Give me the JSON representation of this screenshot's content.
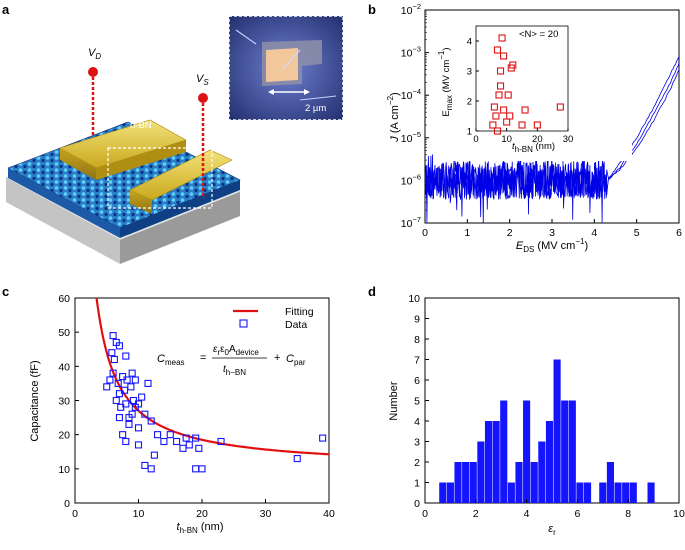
{
  "panels": {
    "a": {
      "letter": "a",
      "vd_label": "V",
      "vd_sub": "D",
      "vs_label": "V",
      "vs_sub": "S",
      "hbn_label": "h-BN",
      "scale_bar": "2 µm"
    },
    "b": {
      "letter": "b"
    },
    "c": {
      "letter": "c"
    },
    "d": {
      "letter": "d"
    }
  },
  "colors": {
    "curve_blue": "#0000e6",
    "marker_red": "#dd1111",
    "fit_red": "#e01010",
    "hist_blue": "#1414ff"
  },
  "chart_data": [
    {
      "id": "b-main",
      "type": "line",
      "xlabel_main": "E",
      "xlabel_sub": "DS",
      "xlabel_unit": " (MV cm",
      "xlabel_exp": "−1",
      "xlabel_close": ")",
      "ylabel_main": "J",
      "ylabel_unit": " (A cm",
      "ylabel_exp": "−2",
      "ylabel_close": ")",
      "xlim": [
        0,
        6
      ],
      "xticks": [
        "0",
        "1",
        "2",
        "3",
        "4",
        "5",
        "6"
      ],
      "yscale": "log",
      "ylim_exp": [
        -7,
        -2
      ],
      "yticks_base": "10",
      "yticks_exp": [
        "−7",
        "−6",
        "−5",
        "−4",
        "−3",
        "−2"
      ],
      "description_series": "Three J–E sweeps: noise floor near 1e-6 A/cm² up to ~4.2 MV/cm, then exponential rise to ~1e-3 at 6 MV/cm",
      "series": [
        {
          "name": "sweep 1",
          "x": [
            4.3,
            4.6,
            5.0,
            5.4,
            5.8,
            6.0
          ],
          "y_log": [
            -6.0,
            -5.6,
            -5.0,
            -4.3,
            -3.5,
            -3.1
          ]
        },
        {
          "name": "sweep 2",
          "x": [
            4.3,
            4.6,
            5.0,
            5.4,
            5.8,
            6.0
          ],
          "y_log": [
            -6.0,
            -5.7,
            -5.15,
            -4.45,
            -3.7,
            -3.25
          ]
        },
        {
          "name": "sweep 3",
          "x": [
            4.3,
            4.6,
            5.0,
            5.4,
            5.8,
            6.0
          ],
          "y_log": [
            -6.0,
            -5.75,
            -5.25,
            -4.6,
            -3.85,
            -3.4
          ]
        }
      ]
    },
    {
      "id": "b-inset",
      "type": "scatter",
      "annotation": "<N> = 20",
      "ylabel_main": "E",
      "ylabel_sub": "max",
      "ylabel_unit": " (MV cm",
      "ylabel_exp": "−1",
      "ylabel_close": ")",
      "xlabel_main": "t",
      "xlabel_sub": "h-BN",
      "xlabel_unit": " (nm)",
      "xlim": [
        0,
        30
      ],
      "ylim": [
        1,
        4.5
      ],
      "xticks": [
        "0",
        "10",
        "20",
        "30"
      ],
      "yticks": [
        "1",
        "2",
        "3",
        "4"
      ],
      "x": [
        5.5,
        6.0,
        6.5,
        7.0,
        7.0,
        7.5,
        8.0,
        8.0,
        8.5,
        9.0,
        9.0,
        10.0,
        10.5,
        11.0,
        11.5,
        12.0,
        15.0,
        16.0,
        20.0,
        27.5
      ],
      "y": [
        1.2,
        1.8,
        1.5,
        3.7,
        1.0,
        2.2,
        2.5,
        3.0,
        4.1,
        3.5,
        1.7,
        1.3,
        2.2,
        1.5,
        3.1,
        3.2,
        1.2,
        1.7,
        1.2,
        1.8
      ]
    },
    {
      "id": "c",
      "type": "scatter",
      "ylabel": "Capacitance (fF)",
      "xlabel_main": "t",
      "xlabel_sub": "h-BN",
      "xlabel_unit": " (nm)",
      "xlim": [
        0,
        40
      ],
      "ylim": [
        0,
        60
      ],
      "xticks": [
        "0",
        "10",
        "20",
        "30",
        "40"
      ],
      "yticks": [
        "0",
        "10",
        "20",
        "30",
        "40",
        "50",
        "60"
      ],
      "legend": [
        {
          "label": "Fitting"
        },
        {
          "label": "Data"
        }
      ],
      "formula": {
        "lhs": "C",
        "lhs_sub": "meas",
        "eq": "=",
        "num_a": "ε",
        "num_a_sub": "r",
        "num_b": "ε",
        "num_b_sub": "0",
        "num_c": "A",
        "num_c_sub": "device",
        "den": "t",
        "den_sub": "h−BN",
        "plus": "+",
        "tail": "C",
        "tail_sub": "par"
      },
      "fit": {
        "numerator": 170,
        "offset": 10
      },
      "x": [
        5,
        5.5,
        5.8,
        6,
        6,
        6.2,
        6.5,
        6.5,
        6.8,
        7,
        7,
        7,
        7.2,
        7.5,
        7.5,
        7.8,
        8,
        8,
        8,
        8.2,
        8.5,
        8.5,
        8.8,
        9,
        9,
        9.2,
        9.5,
        9.5,
        10,
        10,
        10,
        10.5,
        11,
        11,
        11.5,
        12,
        12,
        12.5,
        13,
        14,
        15,
        16,
        17,
        17.5,
        18,
        19,
        19,
        19.5,
        20,
        23,
        35,
        39
      ],
      "y": [
        34,
        36,
        44,
        49,
        38,
        42,
        47,
        30,
        35,
        46,
        32,
        25,
        28,
        37,
        20,
        33,
        43,
        29,
        18,
        36,
        25,
        23,
        34,
        38,
        26,
        30,
        36,
        28,
        22,
        17,
        29,
        31,
        26,
        11,
        35,
        24,
        10,
        14,
        20,
        18,
        20,
        18,
        16,
        19,
        17,
        19,
        10,
        16,
        10,
        18,
        13,
        19
      ]
    },
    {
      "id": "d",
      "type": "bar",
      "ylabel": "Number",
      "xlabel_main": "ε",
      "xlabel_sub": "r",
      "xlim": [
        0,
        10
      ],
      "ylim": [
        0,
        10
      ],
      "xticks": [
        "0",
        "2",
        "4",
        "6",
        "8",
        "10"
      ],
      "yticks": [
        "0",
        "1",
        "2",
        "3",
        "4",
        "5",
        "6",
        "7",
        "8",
        "9",
        "10"
      ],
      "bin_width": 0.28,
      "bins": [
        {
          "x": 0.7,
          "v": 1
        },
        {
          "x": 1.0,
          "v": 1
        },
        {
          "x": 1.3,
          "v": 2
        },
        {
          "x": 1.6,
          "v": 2
        },
        {
          "x": 1.9,
          "v": 2
        },
        {
          "x": 2.2,
          "v": 3
        },
        {
          "x": 2.5,
          "v": 4
        },
        {
          "x": 2.8,
          "v": 4
        },
        {
          "x": 3.1,
          "v": 5
        },
        {
          "x": 3.4,
          "v": 1
        },
        {
          "x": 3.7,
          "v": 2
        },
        {
          "x": 4.0,
          "v": 5
        },
        {
          "x": 4.3,
          "v": 2
        },
        {
          "x": 4.6,
          "v": 3
        },
        {
          "x": 4.9,
          "v": 4
        },
        {
          "x": 5.2,
          "v": 7
        },
        {
          "x": 5.5,
          "v": 5
        },
        {
          "x": 5.8,
          "v": 5
        },
        {
          "x": 6.1,
          "v": 1
        },
        {
          "x": 6.4,
          "v": 1
        },
        {
          "x": 7.0,
          "v": 1
        },
        {
          "x": 7.3,
          "v": 2
        },
        {
          "x": 7.6,
          "v": 1
        },
        {
          "x": 7.9,
          "v": 1
        },
        {
          "x": 8.2,
          "v": 1
        },
        {
          "x": 8.9,
          "v": 1
        }
      ]
    }
  ]
}
